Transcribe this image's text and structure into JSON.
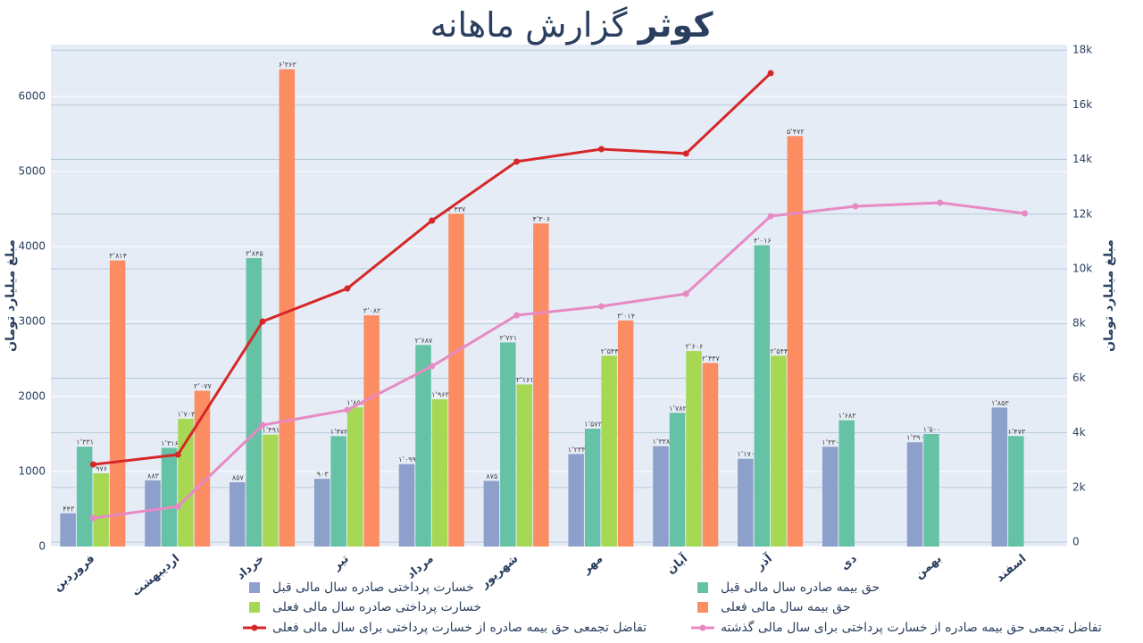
{
  "chart_data": {
    "type": "bar",
    "title": "گزارش ماهانه",
    "title_emphasis": "کوثر",
    "ylabel": "مبلغ میلیارد تومان",
    "y2label": "مبلغ میلیارد تومان",
    "categories": [
      "فروردین",
      "اردیبهشت",
      "خرداد",
      "تیر",
      "مرداد",
      "شهریور",
      "مهر",
      "آبان",
      "آذر",
      "دی",
      "بهمن",
      "اسفند"
    ],
    "ylim": [
      0,
      6690
    ],
    "yticks": [
      0,
      1000,
      2000,
      3000,
      4000,
      5000,
      6000
    ],
    "y2lim": [
      -160,
      18200
    ],
    "y2ticks": [
      0,
      {
        "value": 2000,
        "label": "2k"
      },
      {
        "value": 4000,
        "label": "4k"
      },
      {
        "value": 6000,
        "label": "6k"
      },
      {
        "value": 8000,
        "label": "8k"
      },
      {
        "value": 10000,
        "label": "10k"
      },
      {
        "value": 12000,
        "label": "12k"
      },
      {
        "value": 14000,
        "label": "14k"
      },
      {
        "value": 16000,
        "label": "16k"
      },
      {
        "value": 18000,
        "label": "18k"
      }
    ],
    "grid": true,
    "series": [
      {
        "name": "خسارت پرداختی صادره سال مالی قبل",
        "color": "#8da0cb",
        "values": [
          443,
          883,
          857,
          903,
          1099,
          875,
          1233,
          1338,
          1170,
          1330,
          1390,
          1853
        ],
        "value_labels": [
          "۴۴۳",
          "۸۸۳",
          "۸۵۷",
          "۹۰۳",
          "۱٬۰۹۹",
          "۸۷۵",
          "۱٬۲۳۳",
          "۱٬۳۳۸",
          "۱٬۱۷۰",
          "۱٬۳۳۰",
          "۱٬۳۹۰",
          "۱٬۸۵۳"
        ]
      },
      {
        "name": "حق بیمه صادره سال مالی قبل",
        "color": "#66c2a5",
        "values": [
          1331,
          1316,
          3845,
          1472,
          2687,
          2721,
          1572,
          1782,
          4016,
          1683,
          1500,
          1473
        ],
        "value_labels": [
          "۱٬۳۳۱",
          "۱٬۳۱۶",
          "۳٬۸۴۵",
          "۱٬۴۷۲",
          "۲٬۶۸۷",
          "۲٬۷۲۱",
          "۱٬۵۷۲",
          "۱٬۷۸۲",
          "۴٬۰۱۶",
          "۱٬۶۸۳",
          "۱٬۵۰۰",
          "۱٬۴۷۳"
        ]
      },
      {
        "name": "خسارت پرداختی صادره سال مالی فعلی",
        "color": "#a6d854",
        "values": [
          976,
          1703,
          1491,
          1856,
          1963,
          2161,
          2544,
          2606,
          2544,
          null,
          null,
          null
        ],
        "value_labels": [
          "۹۷۶",
          "۱٬۷۰۳",
          "۱٬۴۹۱",
          "۱٬۸۵۶",
          "۱٬۹۶۳",
          "۲٬۱۶۱",
          "۲٬۵۴۴",
          "۲٬۶۰۶",
          "۲٬۵۴۴",
          null,
          null,
          null
        ]
      },
      {
        "name": "حق بیمه سال مالی فعلی",
        "color": "#fc8d62",
        "values": [
          3814,
          2077,
          6363,
          3082,
          4437,
          4306,
          3014,
          2447,
          5472,
          null,
          null,
          null
        ],
        "value_labels": [
          "۳٬۸۱۴",
          "۲٬۰۷۷",
          "۶٬۳۶۳",
          "۳٬۰۸۲",
          "۴٬۴۳۷",
          "۴٬۳۰۶",
          "۳٬۰۱۴",
          "۲٬۴۴۷",
          "۵٬۴۷۲",
          null,
          null,
          null
        ]
      },
      {
        "name": "تفاضل تجمعی حق بیمه صادره از خسارت پرداختی برای سال مالی فعلی",
        "color": "#d62728",
        "type": "line",
        "axis": "y2",
        "values": [
          2843,
          3203,
          8072,
          9281,
          11765,
          13922,
          14379,
          14216,
          17157,
          null,
          null,
          null
        ]
      },
      {
        "name": "تفاضل تجمعی حق بیمه صادره از خسارت پرداختی برای سال مالی گذشته",
        "color": "#e78ac3",
        "type": "line",
        "axis": "y2",
        "values": [
          882,
          1307,
          4281,
          4837,
          6438,
          8301,
          8627,
          9085,
          11928,
          12288,
          12418,
          12026
        ]
      }
    ]
  }
}
